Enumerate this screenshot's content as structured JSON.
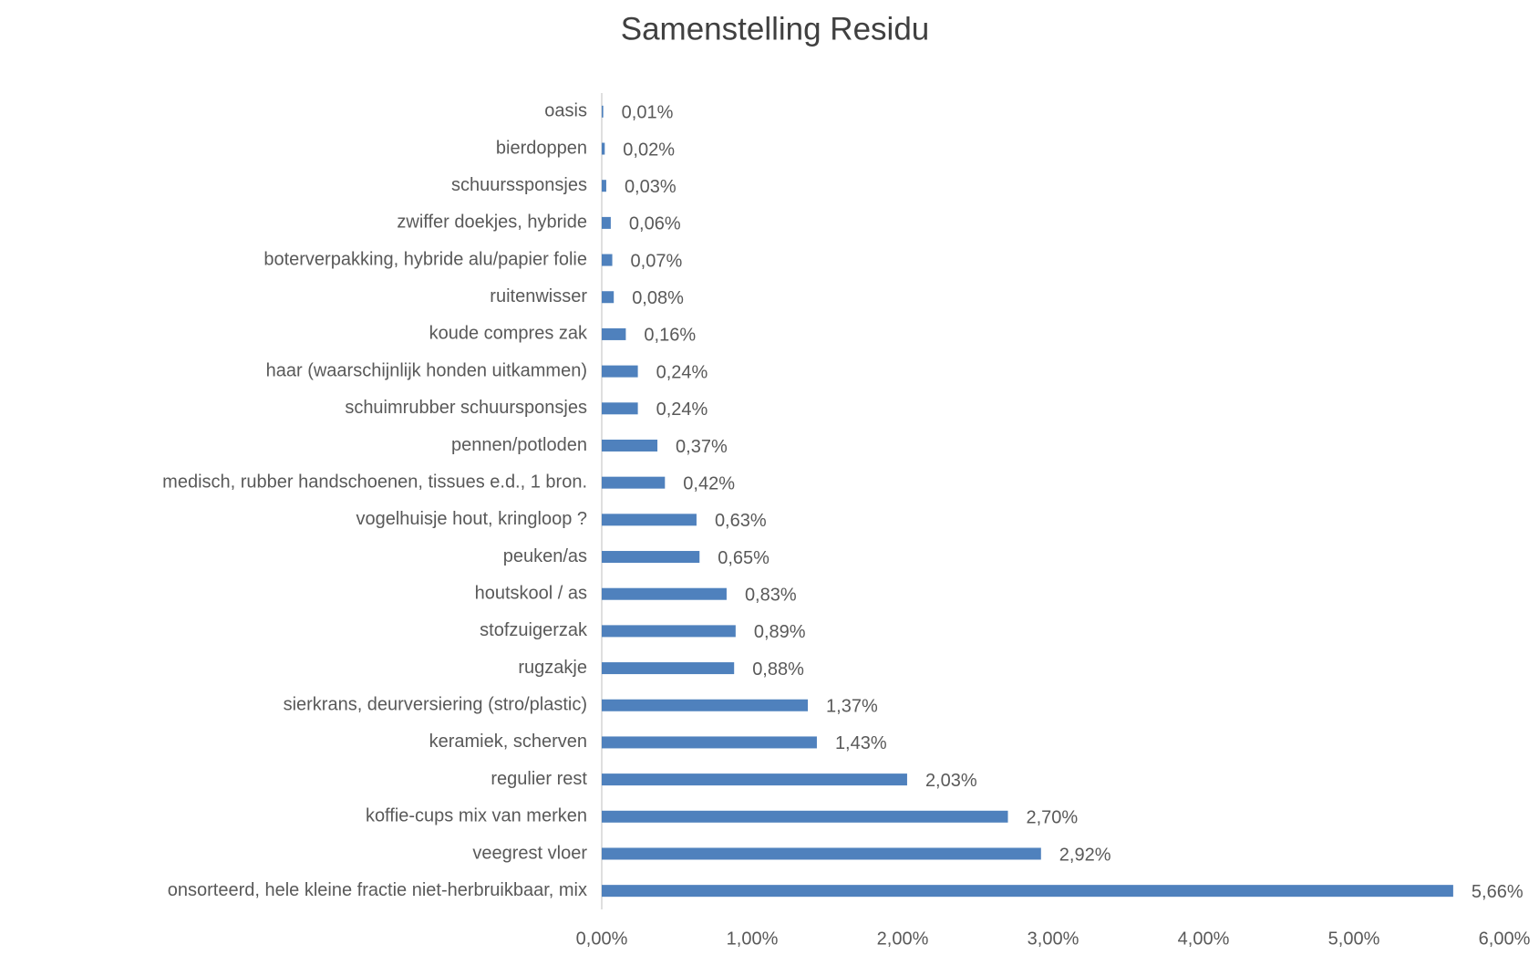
{
  "chart_data": {
    "type": "bar",
    "orientation": "horizontal",
    "title": "Samenstelling Residu",
    "categories": [
      "oasis",
      "bierdoppen",
      "schuurssponsjes",
      "zwiffer doekjes, hybride",
      "boterverpakking, hybride  alu/papier folie",
      "ruitenwisser",
      "koude compres zak",
      "haar (waarschijnlijk honden uitkammen)",
      "schuimrubber schuursponsjes",
      "pennen/potloden",
      "medisch, rubber handschoenen, tissues e.d., 1 bron.",
      "vogelhuisje hout, kringloop ?",
      "peuken/as",
      "houtskool / as",
      "stofzuigerzak",
      "rugzakje",
      "sierkrans, deurversiering (stro/plastic)",
      "keramiek, scherven",
      "regulier rest",
      "koffie-cups mix van merken",
      "veegrest vloer",
      "onsorteerd, hele kleine fractie niet-herbruikbaar, mix"
    ],
    "values": [
      0.01,
      0.02,
      0.03,
      0.06,
      0.07,
      0.08,
      0.16,
      0.24,
      0.24,
      0.37,
      0.42,
      0.63,
      0.65,
      0.83,
      0.89,
      0.88,
      1.37,
      1.43,
      2.03,
      2.7,
      2.92,
      5.66
    ],
    "value_labels": [
      "0,01%",
      "0,02%",
      "0,03%",
      "0,06%",
      "0,07%",
      "0,08%",
      "0,16%",
      "0,24%",
      "0,24%",
      "0,37%",
      "0,42%",
      "0,63%",
      "0,65%",
      "0,83%",
      "0,89%",
      "0,88%",
      "1,37%",
      "1,43%",
      "2,03%",
      "2,70%",
      "2,92%",
      "5,66%"
    ],
    "color": "#4f81bd",
    "xlim": [
      0,
      6
    ],
    "xticks": [
      {
        "value": 0,
        "label": "0,00%"
      },
      {
        "value": 1,
        "label": "1,00%"
      },
      {
        "value": 2,
        "label": "2,00%"
      },
      {
        "value": 3,
        "label": "3,00%"
      },
      {
        "value": 4,
        "label": "4,00%"
      },
      {
        "value": 5,
        "label": "5,00%"
      },
      {
        "value": 6,
        "label": "6,00%"
      }
    ],
    "grid": false
  }
}
